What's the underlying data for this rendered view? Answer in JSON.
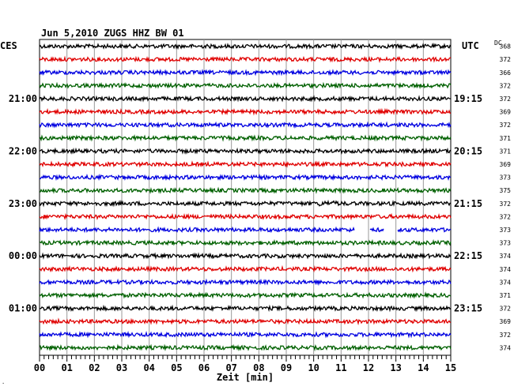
{
  "chart_data": {
    "type": "line",
    "title": "Jun 5,2010   ZUGS HHZ BW 01",
    "xlabel": "Zeit [min]",
    "left_axis_label": "CES",
    "right_axis_label": "UTC",
    "dc_label": "DC",
    "xlim": [
      0,
      15
    ],
    "x_ticks": [
      "00",
      "01",
      "02",
      "03",
      "04",
      "05",
      "06",
      "07",
      "08",
      "09",
      "10",
      "11",
      "12",
      "13",
      "14",
      "15"
    ],
    "left_time_labels": [
      {
        "row": 4,
        "label": "21:00"
      },
      {
        "row": 8,
        "label": "22:00"
      },
      {
        "row": 12,
        "label": "23:00"
      },
      {
        "row": 16,
        "label": "00:00"
      },
      {
        "row": 20,
        "label": "01:00"
      }
    ],
    "right_time_labels": [
      {
        "row": 4,
        "label": "19:15"
      },
      {
        "row": 8,
        "label": "20:15"
      },
      {
        "row": 12,
        "label": "21:15"
      },
      {
        "row": 16,
        "label": "22:15"
      },
      {
        "row": 20,
        "label": "23:15"
      }
    ],
    "trace_colors": [
      "#000000",
      "#e00000",
      "#0000e0",
      "#006000"
    ],
    "dc_values": [
      "368",
      "372",
      "366",
      "372",
      "372",
      "369",
      "372",
      "371",
      "371",
      "369",
      "373",
      "375",
      "372",
      "372",
      "373",
      "373",
      "374",
      "374",
      "374",
      "371",
      "372",
      "369",
      "372",
      "374"
    ],
    "gaps": [
      {
        "row": 14,
        "from_min": 11.5,
        "to_min": 12.05
      },
      {
        "row": 14,
        "from_min": 12.55,
        "to_min": 13.05
      }
    ]
  }
}
